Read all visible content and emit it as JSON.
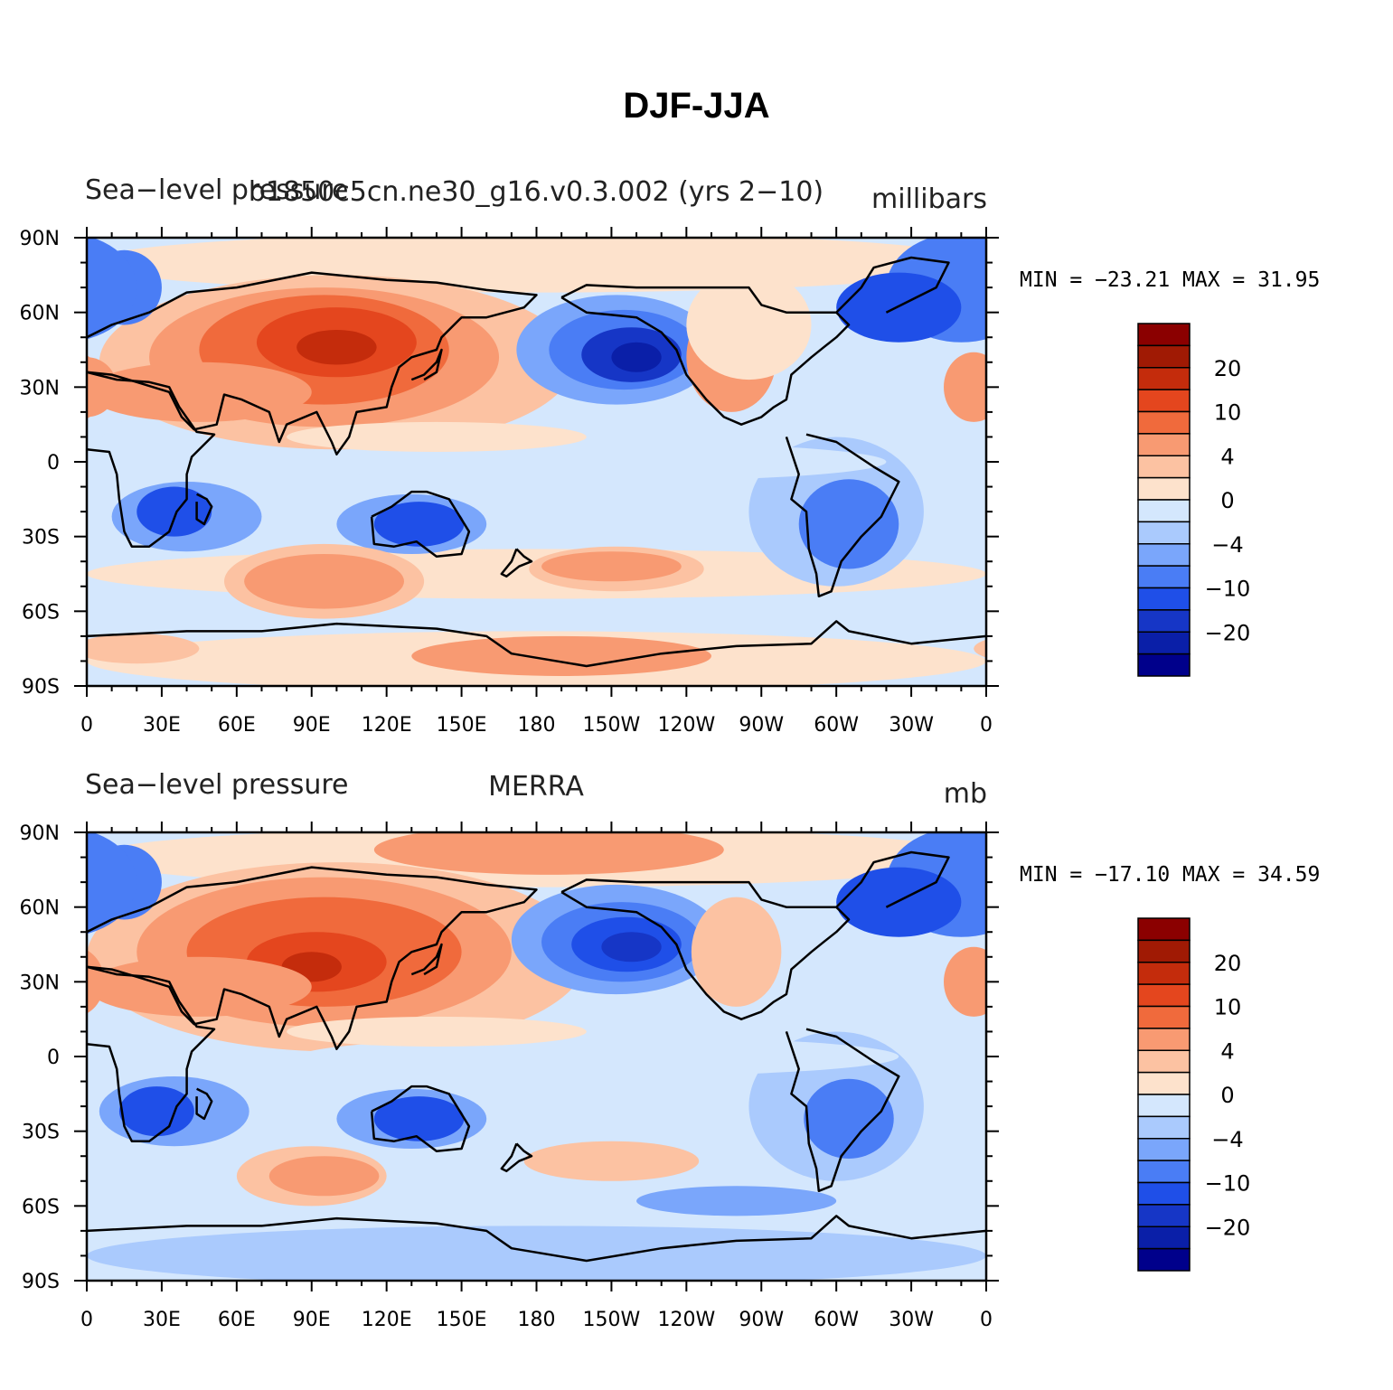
{
  "title": "DJF-JJA",
  "colors": {
    "levels": [
      "#00008b",
      "#0a1fa8",
      "#1636c6",
      "#1f4fe8",
      "#4a7df5",
      "#7aa6fb",
      "#aacafd",
      "#d4e7fd",
      "#fde2cc",
      "#fcc2a2",
      "#f89a72",
      "#f06a3c",
      "#e4461e",
      "#c42c0c",
      "#a01a04",
      "#8b0000"
    ],
    "coast": "#000000"
  },
  "x_ticks": [
    "0",
    "30E",
    "60E",
    "90E",
    "120E",
    "150E",
    "180",
    "150W",
    "120W",
    "90W",
    "60W",
    "30W",
    "0"
  ],
  "y_ticks": [
    "90N",
    "60N",
    "30N",
    "0",
    "30S",
    "60S",
    "90S"
  ],
  "colorbar_labels": [
    "20",
    "10",
    "4",
    "0",
    "−4",
    "−10",
    "−20"
  ],
  "panels": [
    {
      "left_label": "Sea−level pressure",
      "center_label": "b1850c5cn.ne30_g16.v0.3.002 (yrs 2−10)",
      "right_label": "millibars",
      "stats": "MIN = −23.21 MAX =   31.95"
    },
    {
      "left_label": "Sea−level pressure",
      "center_label": "MERRA",
      "right_label": "mb",
      "stats": "MIN = −17.10 MAX =   34.59"
    }
  ]
}
